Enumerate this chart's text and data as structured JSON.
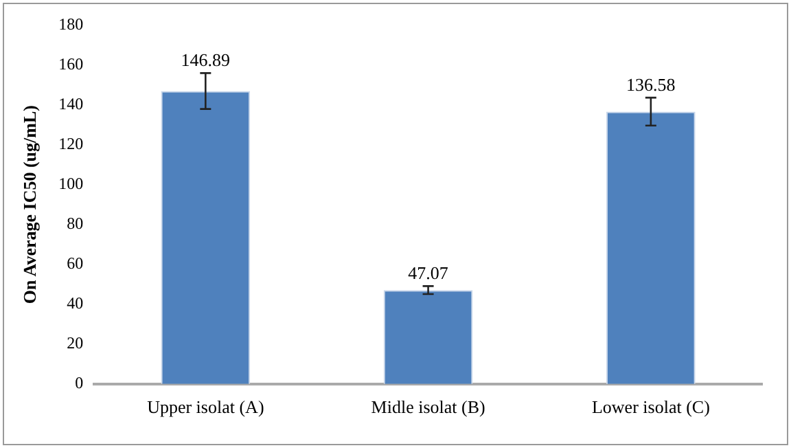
{
  "chart_data": {
    "type": "bar",
    "ylabel": "On Average IC50 (ug/mL)",
    "categories": [
      "Upper isolat (A)",
      "Midle isolat (B)",
      "Lower isolat (C)"
    ],
    "values": [
      146.89,
      47.07,
      136.58
    ],
    "color": "#4f81bd",
    "errors": [
      9,
      2,
      7
    ],
    "ylim": [
      0,
      180
    ],
    "yticks": [
      0,
      20,
      40,
      60,
      80,
      100,
      120,
      140,
      160,
      180
    ],
    "grid": false,
    "data_labels": true
  }
}
